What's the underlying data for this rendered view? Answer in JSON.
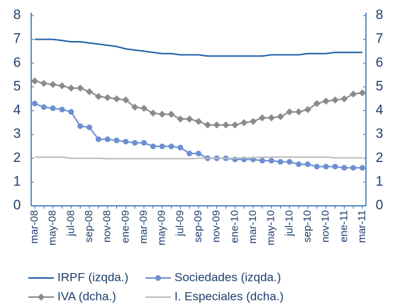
{
  "chart_data": {
    "type": "line",
    "categories": [
      "mar-08",
      null,
      "may-08",
      null,
      "jul-08",
      null,
      "sep-08",
      null,
      "nov-08",
      null,
      "ene-09",
      null,
      "mar-09",
      null,
      "may-09",
      null,
      "jul-09",
      null,
      "sep-09",
      null,
      "nov-09",
      null,
      "ene-10",
      null,
      "mar-10",
      null,
      "may-10",
      null,
      "jul-10",
      null,
      "sep-10",
      null,
      "nov-10",
      null,
      "ene-11",
      null,
      "mar-11"
    ],
    "series": [
      {
        "name": "IRPF (izqda.)",
        "color": "#215ea6",
        "marker": "none",
        "axis": "y",
        "values": [
          7.0,
          7.0,
          7.0,
          6.95,
          6.9,
          6.9,
          6.85,
          6.8,
          6.75,
          6.7,
          6.6,
          6.55,
          6.5,
          6.45,
          6.4,
          6.4,
          6.35,
          6.35,
          6.35,
          6.3,
          6.3,
          6.3,
          6.3,
          6.3,
          6.3,
          6.3,
          6.35,
          6.35,
          6.35,
          6.35,
          6.4,
          6.4,
          6.4,
          6.45,
          6.45,
          6.45,
          6.45
        ]
      },
      {
        "name": "Sociedades (izqda.)",
        "color": "#6d8fd2",
        "marker": "circle",
        "axis": "y",
        "values": [
          4.3,
          4.15,
          4.1,
          4.05,
          3.95,
          3.35,
          3.3,
          2.8,
          2.8,
          2.75,
          2.7,
          2.65,
          2.65,
          2.5,
          2.5,
          2.5,
          2.45,
          2.2,
          2.2,
          2.0,
          2.0,
          2.0,
          1.95,
          1.95,
          1.95,
          1.9,
          1.9,
          1.85,
          1.85,
          1.75,
          1.75,
          1.65,
          1.65,
          1.65,
          1.6,
          1.6,
          1.6
        ]
      },
      {
        "name": "IVA (dcha.)",
        "color": "#8a8a8a",
        "marker": "diamond",
        "axis": "y2",
        "values": [
          5.25,
          5.15,
          5.1,
          5.05,
          4.95,
          4.95,
          4.8,
          4.6,
          4.55,
          4.5,
          4.45,
          4.15,
          4.1,
          3.9,
          3.85,
          3.85,
          3.65,
          3.65,
          3.55,
          3.4,
          3.4,
          3.4,
          3.4,
          3.5,
          3.55,
          3.7,
          3.7,
          3.75,
          3.95,
          3.95,
          4.05,
          4.3,
          4.4,
          4.45,
          4.5,
          4.7,
          4.75
        ]
      },
      {
        "name": "I. Especiales (dcha.)",
        "color": "#bdbdbd",
        "marker": "none",
        "axis": "y2",
        "values": [
          2.05,
          2.05,
          2.05,
          2.05,
          2.0,
          2.0,
          2.0,
          2.0,
          1.98,
          1.98,
          1.98,
          1.98,
          1.98,
          1.98,
          1.98,
          1.98,
          1.98,
          1.98,
          2.0,
          2.0,
          2.0,
          2.0,
          2.0,
          2.02,
          2.02,
          2.05,
          2.05,
          2.05,
          2.05,
          2.05,
          2.05,
          2.05,
          2.05,
          2.02,
          2.02,
          2.02,
          2.02
        ]
      }
    ],
    "ylim": [
      0,
      8
    ],
    "yticks": [
      0,
      1,
      2,
      3,
      4,
      5,
      6,
      7,
      8
    ],
    "y2lim": [
      0,
      8
    ],
    "y2ticks": [
      0,
      1,
      2,
      3,
      4,
      5,
      6,
      7,
      8
    ],
    "grid": false
  }
}
